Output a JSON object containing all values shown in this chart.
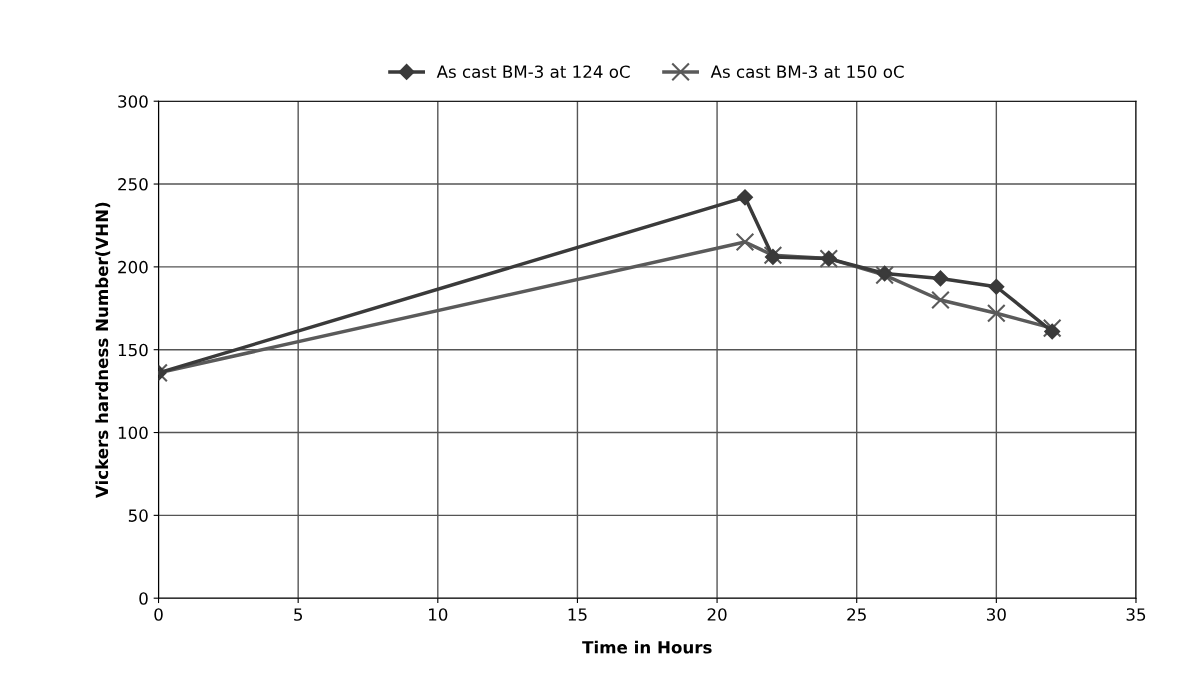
{
  "chart_data": {
    "type": "line",
    "xlabel": "Time in Hours",
    "ylabel": "Vickers hardness Number(VHN)",
    "x": [
      0,
      21,
      22,
      24,
      26,
      28,
      30,
      32
    ],
    "series": [
      {
        "name": "As cast BM-3 at 124 oC",
        "color": "#3a3a3a",
        "marker": "diamond",
        "values": [
          136,
          242,
          206,
          205,
          196,
          193,
          188,
          161
        ]
      },
      {
        "name": "As cast BM-3 at 150 oC",
        "color": "#5a5a5a",
        "marker": "cross",
        "values": [
          136,
          215,
          207,
          205,
          195,
          180,
          172,
          163
        ]
      }
    ],
    "xlim": [
      0,
      35
    ],
    "xticks": [
      0,
      5,
      10,
      15,
      20,
      25,
      30,
      35
    ],
    "ylim": [
      0,
      300
    ],
    "yticks": [
      0,
      50,
      100,
      150,
      200,
      250,
      300
    ],
    "grid": true,
    "legend": "top",
    "line_style": "solid"
  }
}
